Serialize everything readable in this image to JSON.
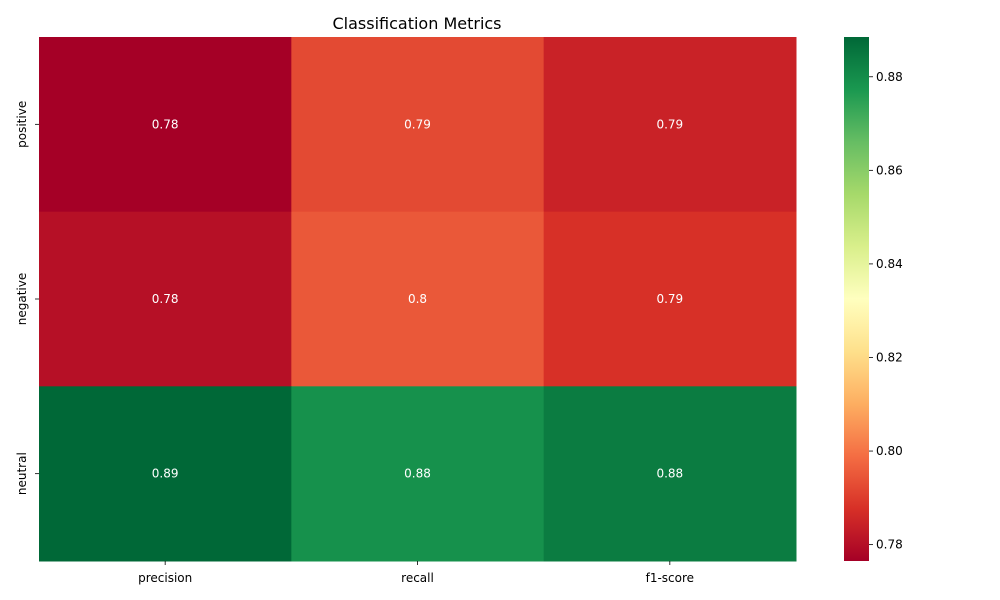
{
  "chart_data": {
    "type": "heatmap",
    "title": "Classification Metrics",
    "xlabel": "",
    "ylabel": "",
    "columns": [
      "precision",
      "recall",
      "f1-score"
    ],
    "rows": [
      "positive",
      "negative",
      "neutral"
    ],
    "values": [
      [
        0.78,
        0.79,
        0.79
      ],
      [
        0.78,
        0.8,
        0.79
      ],
      [
        0.89,
        0.88,
        0.88
      ]
    ],
    "annotations": [
      [
        "0.78",
        "0.79",
        "0.79"
      ],
      [
        "0.78",
        "0.8",
        "0.79"
      ],
      [
        "0.89",
        "0.88",
        "0.88"
      ]
    ],
    "color_values": [
      [
        0.7765,
        0.7925,
        0.7845
      ],
      [
        0.7803,
        0.795,
        0.7876
      ],
      [
        0.8885,
        0.879,
        0.8838
      ]
    ],
    "colormap": "RdYlGn",
    "vmin": 0.7765,
    "vmax": 0.8885,
    "colorbar": {
      "ticks": [
        0.78,
        0.8,
        0.82,
        0.84,
        0.86,
        0.88
      ],
      "tick_labels": [
        "0.78",
        "0.80",
        "0.82",
        "0.84",
        "0.86",
        "0.88"
      ]
    },
    "grid": false,
    "legend": "colorbar-right"
  }
}
